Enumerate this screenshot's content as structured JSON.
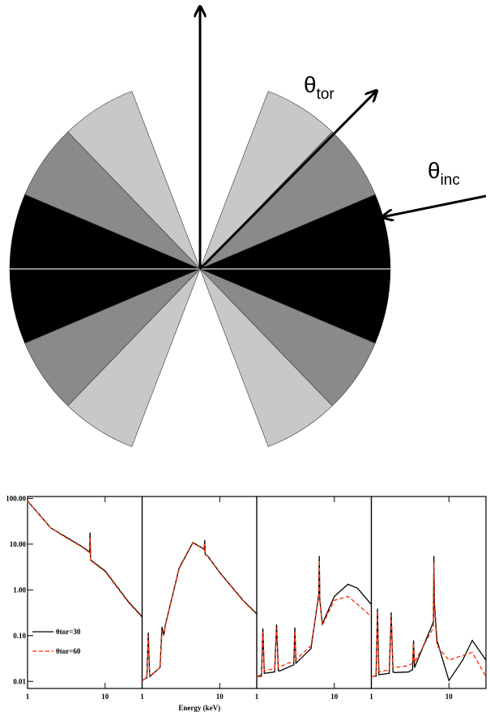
{
  "diagram": {
    "theta_tor": {
      "symbol": "θ",
      "subscript": "tor"
    },
    "theta_inc": {
      "symbol": "θ",
      "subscript": "inc"
    }
  },
  "chart_data": [
    {
      "type": "line",
      "xscale": "log",
      "yscale": "log",
      "xlim": [
        1,
        30
      ],
      "ylim": [
        0.007,
        110
      ],
      "xticks": [
        1,
        10
      ],
      "yticks": [
        {
          "value": 0.01,
          "label": "0.01"
        },
        {
          "value": 0.1,
          "label": "0.10"
        },
        {
          "value": 1,
          "label": "1.00"
        },
        {
          "value": 10,
          "label": "10.00"
        },
        {
          "value": 100,
          "label": "100.00"
        }
      ],
      "legend": "lower left",
      "x": [
        1,
        2,
        3,
        5,
        6.3,
        6.4,
        6.5,
        10,
        20,
        30
      ],
      "series": [
        {
          "name": "θtor=30",
          "color": "#000000",
          "linestyle": "solid",
          "values": [
            88,
            22.5,
            15,
            8.9,
            6.7,
            18,
            4.5,
            2.6,
            0.55,
            0.26
          ]
        },
        {
          "name": "θtor=60",
          "color": "#ff2a00",
          "linestyle": "dashed",
          "values": [
            88,
            22.5,
            14.5,
            8.7,
            6.5,
            14,
            4.4,
            2.5,
            0.53,
            0.25
          ]
        }
      ]
    },
    {
      "type": "line",
      "xscale": "log",
      "yscale": "log",
      "xlim": [
        1,
        30
      ],
      "ylim": [
        0.007,
        110
      ],
      "xticks": [
        1,
        10
      ],
      "xlabel": "Energy (keV)",
      "x": [
        1,
        1.15,
        1.2,
        1.25,
        1.7,
        1.8,
        1.9,
        2,
        3,
        4.5,
        6,
        6.3,
        6.4,
        6.5,
        7,
        10,
        20,
        30
      ],
      "series": [
        {
          "color": "#000000",
          "linestyle": "solid",
          "values": [
            0.0104,
            0.012,
            0.117,
            0.0127,
            0.02,
            0.156,
            0.1,
            0.176,
            3.0,
            10.8,
            8.2,
            7.5,
            12.2,
            6,
            5.5,
            2.4,
            0.59,
            0.3
          ]
        },
        {
          "color": "#ff2a00",
          "linestyle": "dashed",
          "values": [
            0.0104,
            0.012,
            0.1,
            0.013,
            0.02,
            0.13,
            0.1,
            0.17,
            2.9,
            10.6,
            8.1,
            7.4,
            10,
            5.9,
            5.4,
            2.35,
            0.58,
            0.29
          ]
        }
      ]
    },
    {
      "type": "line",
      "xscale": "log",
      "yscale": "log",
      "xlim": [
        1,
        30
      ],
      "ylim": [
        0.007,
        110
      ],
      "xticks": [
        1,
        10
      ],
      "x": [
        1,
        1.15,
        1.2,
        1.25,
        1.7,
        1.8,
        1.9,
        2,
        3,
        3.1,
        3.2,
        5,
        6.3,
        6.4,
        6.5,
        7,
        10,
        15,
        20,
        30
      ],
      "series": [
        {
          "color": "#000000",
          "linestyle": "solid",
          "values": [
            0.0127,
            0.013,
            0.144,
            0.015,
            0.016,
            0.176,
            0.017,
            0.017,
            0.023,
            0.15,
            0.025,
            0.052,
            0.8,
            5.5,
            0.6,
            0.18,
            0.72,
            1.33,
            1.08,
            0.48
          ]
        },
        {
          "color": "#ff2a00",
          "linestyle": "dashed",
          "values": [
            0.0127,
            0.014,
            0.12,
            0.017,
            0.019,
            0.15,
            0.02,
            0.021,
            0.028,
            0.13,
            0.03,
            0.06,
            0.7,
            4.5,
            0.55,
            0.17,
            0.59,
            0.72,
            0.48,
            0.26
          ]
        }
      ]
    },
    {
      "type": "line",
      "xscale": "log",
      "yscale": "log",
      "xlim": [
        1,
        30
      ],
      "ylim": [
        0.007,
        110
      ],
      "xticks": [
        1,
        10
      ],
      "x": [
        1,
        1.15,
        1.2,
        1.25,
        1.7,
        1.8,
        1.9,
        2,
        3,
        3.4,
        3.5,
        3.6,
        6.3,
        6.4,
        6.5,
        7,
        10,
        15,
        20,
        30
      ],
      "series": [
        {
          "color": "#000000",
          "linestyle": "solid",
          "values": [
            0.0127,
            0.013,
            0.39,
            0.014,
            0.015,
            0.32,
            0.016,
            0.0156,
            0.016,
            0.018,
            0.079,
            0.02,
            0.2,
            5.5,
            0.5,
            0.079,
            0.0104,
            0.029,
            0.079,
            0.029
          ]
        },
        {
          "color": "#ff2a00",
          "linestyle": "dashed",
          "values": [
            0.0127,
            0.013,
            0.35,
            0.016,
            0.018,
            0.28,
            0.02,
            0.02,
            0.022,
            0.025,
            0.07,
            0.026,
            0.15,
            4,
            0.4,
            0.06,
            0.029,
            0.037,
            0.043,
            0.0127
          ]
        }
      ]
    }
  ]
}
